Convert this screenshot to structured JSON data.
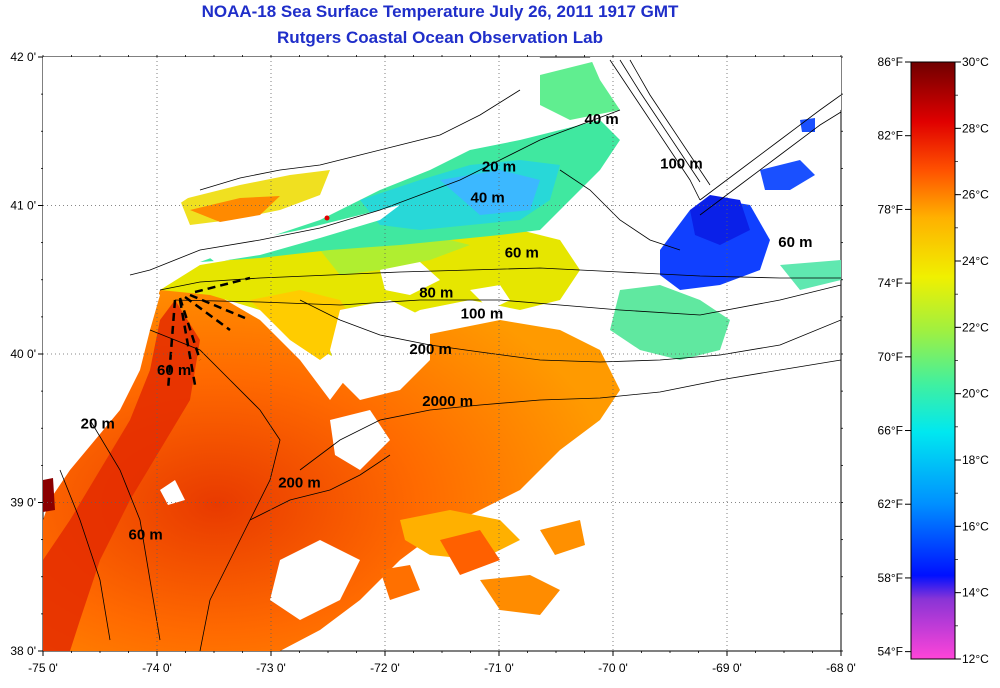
{
  "titles": {
    "line1": "NOAA-18 Sea Surface Temperature July 26, 2011 1917 GMT",
    "line2": "Rutgers Coastal Ocean Observation Lab"
  },
  "axes": {
    "lon_labels": [
      "-75 0'",
      "-74 0'",
      "-73 0'",
      "-72 0'",
      "-71 0'",
      "-70 0'",
      "-69 0'",
      "-68 0'"
    ],
    "lat_labels": [
      "42 0'",
      "41 0'",
      "40 0'",
      "39 0'",
      "38 0'"
    ],
    "lon_range": [
      -75,
      -68
    ],
    "lat_range": [
      38,
      42
    ]
  },
  "contour_labels": [
    {
      "text": "40 m",
      "lon": -70.1,
      "lat": 41.55
    },
    {
      "text": "20 m",
      "lon": -71.0,
      "lat": 41.23
    },
    {
      "text": "40 m",
      "lon": -71.1,
      "lat": 41.02
    },
    {
      "text": "100 m",
      "lon": -69.4,
      "lat": 41.25
    },
    {
      "text": "60 m",
      "lon": -70.8,
      "lat": 40.65
    },
    {
      "text": "60 m",
      "lon": -68.4,
      "lat": 40.72
    },
    {
      "text": "80 m",
      "lon": -71.55,
      "lat": 40.38
    },
    {
      "text": "100 m",
      "lon": -71.15,
      "lat": 40.24
    },
    {
      "text": "200 m",
      "lon": -71.6,
      "lat": 40.0
    },
    {
      "text": "60 m",
      "lon": -73.85,
      "lat": 39.86
    },
    {
      "text": "2000 m",
      "lon": -71.45,
      "lat": 39.65
    },
    {
      "text": "20 m",
      "lon": -74.52,
      "lat": 39.5
    },
    {
      "text": "200 m",
      "lon": -72.75,
      "lat": 39.1
    },
    {
      "text": "60 m",
      "lon": -74.1,
      "lat": 38.75
    }
  ],
  "colorbar": {
    "fahrenheit_labels": [
      "86°F",
      "82°F",
      "78°F",
      "74°F",
      "70°F",
      "66°F",
      "62°F",
      "58°F",
      "54°F"
    ],
    "celsius_labels": [
      "30°C",
      "28°C",
      "26°C",
      "24°C",
      "22°C",
      "20°C",
      "18°C",
      "16°C",
      "14°C",
      "12°C"
    ],
    "range_c": [
      12,
      30
    ],
    "colors": [
      "#ff44d8",
      "#7a2fd0",
      "#0010ff",
      "#0080ff",
      "#00e0ff",
      "#40f0a0",
      "#a0f040",
      "#f0f000",
      "#ffb000",
      "#ff5000",
      "#e00000",
      "#800000"
    ]
  }
}
